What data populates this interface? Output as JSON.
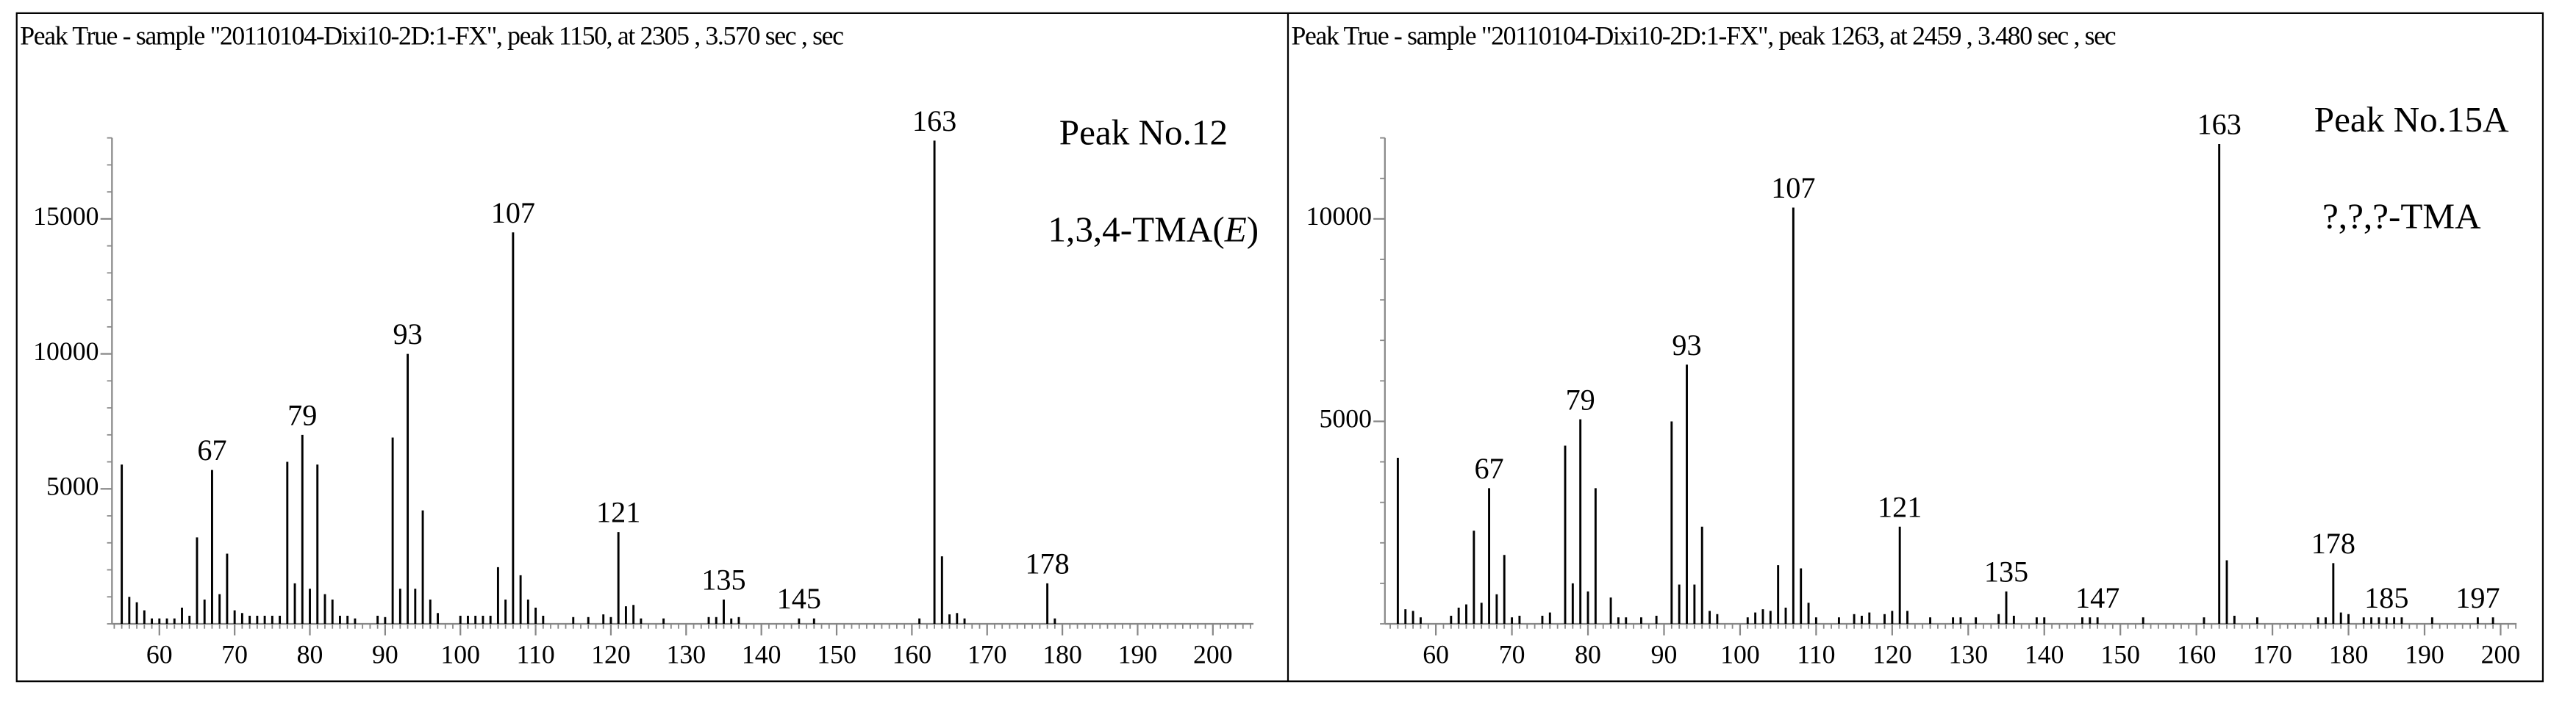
{
  "chart_data": [
    {
      "type": "bar",
      "title": "Peak True - sample \"20110104-Dixi10-2D:1-FX\", peak 1150, at 2305 , 3.570 sec , sec",
      "peak_name": "Peak No.12",
      "compound": {
        "text": "1,3,4-TMA(",
        "italic": "E",
        "end": ")"
      },
      "color": "#000000",
      "x": [
        55,
        56,
        57,
        58,
        59,
        60,
        61,
        62,
        63,
        64,
        65,
        66,
        67,
        68,
        69,
        70,
        71,
        72,
        73,
        74,
        75,
        76,
        77,
        78,
        79,
        80,
        81,
        82,
        83,
        84,
        85,
        86,
        89,
        90,
        91,
        92,
        93,
        94,
        95,
        96,
        97,
        100,
        101,
        102,
        103,
        104,
        105,
        106,
        107,
        108,
        109,
        110,
        111,
        115,
        117,
        119,
        120,
        121,
        122,
        123,
        124,
        127,
        133,
        134,
        135,
        136,
        137,
        145,
        147,
        161,
        163,
        164,
        165,
        166,
        167,
        178,
        179
      ],
      "values": [
        5900,
        1000,
        800,
        500,
        200,
        200,
        200,
        200,
        600,
        300,
        3200,
        900,
        5700,
        1100,
        2600,
        500,
        400,
        300,
        300,
        300,
        300,
        300,
        6000,
        1500,
        7000,
        1300,
        5900,
        1100,
        900,
        300,
        300,
        200,
        300,
        250,
        6900,
        1300,
        10000,
        1300,
        4200,
        900,
        400,
        300,
        300,
        300,
        300,
        300,
        2100,
        900,
        14500,
        1800,
        900,
        600,
        300,
        250,
        250,
        350,
        250,
        3400,
        650,
        700,
        200,
        200,
        250,
        250,
        900,
        200,
        250,
        200,
        200,
        200,
        17900,
        2500,
        350,
        400,
        200,
        1500,
        200
      ],
      "peak_labels": [
        67,
        79,
        93,
        107,
        121,
        135,
        145,
        163,
        178
      ],
      "xlim": [
        53.7,
        205.4
      ],
      "ylim": [
        0,
        18000
      ],
      "xticks": [
        60,
        70,
        80,
        90,
        100,
        110,
        120,
        130,
        140,
        150,
        160,
        170,
        180,
        190,
        200
      ],
      "yticks": [
        5000,
        10000,
        15000
      ]
    },
    {
      "type": "bar",
      "title": "Peak True - sample \"20110104-Dixi10-2D:1-FX\", peak 1263, at 2459 , 3.480 sec , sec",
      "peak_name": "Peak No.15A",
      "compound": {
        "text": "?,?,?-TMA"
      },
      "color": "#000000",
      "x": [
        55,
        56,
        57,
        58,
        62,
        63,
        64,
        65,
        66,
        67,
        68,
        69,
        70,
        71,
        74,
        75,
        77,
        78,
        79,
        80,
        81,
        83,
        84,
        85,
        87,
        89,
        91,
        92,
        93,
        94,
        95,
        96,
        97,
        101,
        102,
        103,
        104,
        105,
        106,
        107,
        108,
        109,
        110,
        113,
        115,
        116,
        117,
        119,
        120,
        121,
        122,
        125,
        128,
        129,
        131,
        134,
        135,
        136,
        139,
        140,
        145,
        146,
        147,
        153,
        161,
        163,
        164,
        165,
        168,
        176,
        177,
        178,
        179,
        180,
        182,
        183,
        184,
        185,
        186,
        187,
        191,
        197,
        199
      ],
      "values": [
        4100,
        360,
        320,
        160,
        200,
        400,
        480,
        2300,
        520,
        3350,
        730,
        1700,
        160,
        200,
        200,
        280,
        4400,
        1000,
        5050,
        800,
        3350,
        650,
        160,
        160,
        160,
        200,
        5000,
        970,
        6400,
        970,
        2400,
        320,
        240,
        160,
        280,
        360,
        320,
        1450,
        400,
        10280,
        1370,
        520,
        160,
        160,
        240,
        200,
        280,
        240,
        320,
        2400,
        320,
        160,
        160,
        160,
        160,
        240,
        800,
        200,
        160,
        160,
        160,
        160,
        160,
        160,
        160,
        11850,
        1570,
        200,
        160,
        160,
        160,
        1500,
        280,
        240,
        160,
        160,
        160,
        160,
        160,
        160,
        160,
        160,
        160
      ],
      "peak_labels": [
        67,
        79,
        93,
        107,
        121,
        135,
        147,
        163,
        178,
        185,
        197
      ],
      "xlim": [
        53.3,
        202.1
      ],
      "ylim": [
        0,
        12000
      ],
      "xticks": [
        60,
        70,
        80,
        90,
        100,
        110,
        120,
        130,
        140,
        150,
        160,
        170,
        180,
        190,
        200
      ],
      "yticks": [
        5000,
        10000
      ]
    }
  ]
}
